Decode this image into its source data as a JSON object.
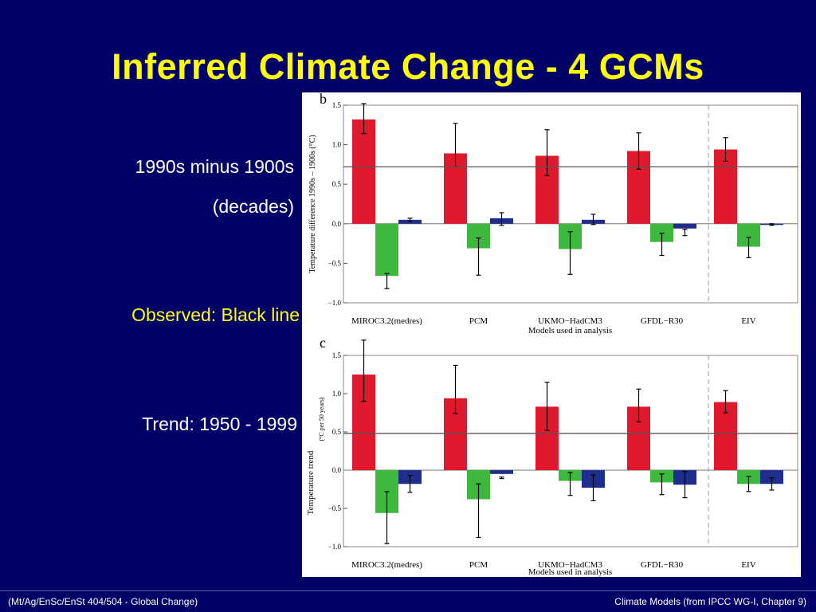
{
  "slide": {
    "title": "Inferred Climate Change - 4 GCMs",
    "diff_label_line1": "1990s minus 1900s",
    "diff_label_line2": "(decades)",
    "observed_label": "Observed:  Black line",
    "trend_label": "Trend:  1950 - 1999",
    "footer_left": "(Mt/Ag/EnSc/EnSt 404/504 - Global Change)",
    "footer_right": "Climate Models  (from IPCC WG-I, Chapter 9)"
  },
  "colors": {
    "background": "#000066",
    "title": "#ffff00",
    "red": "#e0192d",
    "green": "#3cb93c",
    "blue": "#1f2e8c"
  },
  "chart_data": [
    {
      "type": "bar",
      "panel_letter": "b",
      "ylabel": "Temperature difference 1990s – 1900s (°C)",
      "categories": [
        "MIROC3.2(medres)",
        "PCM",
        "UKMO−HadCM3",
        "GFDL−R30",
        "EIV"
      ],
      "center_caption": "Models used in analysis",
      "ylim": [
        -1.0,
        1.5
      ],
      "yticks": [
        "1.5",
        "1.0",
        "0.5",
        "0.0",
        "−0.5",
        "−1.0"
      ],
      "observed": 0.72,
      "series": [
        {
          "color": "red",
          "values": [
            1.32,
            0.89,
            0.86,
            0.92,
            0.94
          ],
          "err_low": [
            1.14,
            0.72,
            0.61,
            0.69,
            0.79
          ],
          "err_high": [
            1.52,
            1.27,
            1.19,
            1.15,
            1.09
          ]
        },
        {
          "color": "green",
          "values": [
            -0.66,
            -0.31,
            -0.32,
            -0.23,
            -0.29
          ],
          "err_low": [
            -0.82,
            -0.65,
            -0.64,
            -0.4,
            -0.43
          ],
          "err_high": [
            -0.63,
            -0.18,
            -0.1,
            -0.12,
            -0.17
          ]
        },
        {
          "color": "blue",
          "values": [
            0.05,
            0.07,
            0.05,
            -0.06,
            -0.01
          ],
          "err_low": [
            0.03,
            -0.02,
            -0.01,
            -0.07,
            -0.02
          ],
          "err_high": [
            0.07,
            0.14,
            0.12,
            -0.15,
            0.0
          ]
        }
      ]
    },
    {
      "type": "bar",
      "panel_letter": "c",
      "ylabel": "Temperature trend",
      "ylabel_unit": "(°C per 50 years)",
      "categories": [
        "MIROC3.2(medres)",
        "PCM",
        "UKMO−HadCM3",
        "GFDL−R30",
        "EIV"
      ],
      "center_caption": "Models used in analysis",
      "ylim": [
        -1.0,
        1.5
      ],
      "yticks": [
        "1.5",
        "1.0",
        "0.5",
        "0.0",
        "−0.5",
        "−1.0"
      ],
      "observed": 0.48,
      "series": [
        {
          "color": "red",
          "values": [
            1.25,
            0.94,
            0.83,
            0.83,
            0.89
          ],
          "err_low": [
            0.9,
            0.74,
            0.52,
            0.63,
            0.75
          ],
          "err_high": [
            1.7,
            1.37,
            1.15,
            1.06,
            1.04
          ]
        },
        {
          "color": "green",
          "values": [
            -0.56,
            -0.38,
            -0.14,
            -0.16,
            -0.18
          ],
          "err_low": [
            -0.96,
            -0.88,
            -0.33,
            -0.32,
            -0.28
          ],
          "err_high": [
            -0.28,
            -0.18,
            -0.03,
            -0.05,
            -0.08
          ]
        },
        {
          "color": "blue",
          "values": [
            -0.18,
            -0.05,
            -0.23,
            -0.19,
            -0.18
          ],
          "err_low": [
            -0.29,
            -0.11,
            -0.4,
            -0.36,
            -0.26
          ],
          "err_high": [
            -0.07,
            -0.09,
            -0.06,
            -0.02,
            -0.1
          ]
        }
      ]
    }
  ]
}
